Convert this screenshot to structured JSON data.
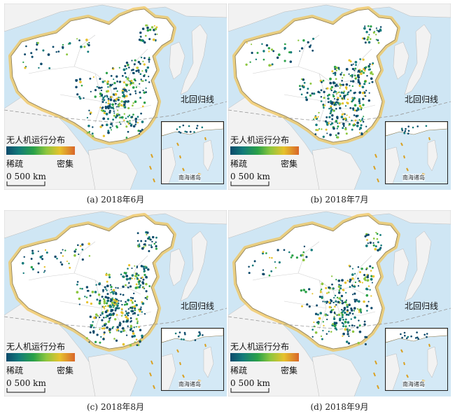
{
  "legend": {
    "title": "无人机运行分布",
    "low": "稀疏",
    "high": "密集"
  },
  "scale": "0  500 km",
  "tropic_label": "北回归线",
  "inset_label": "南海诸岛",
  "panels": [
    {
      "caption": "(a) 2018年6月"
    },
    {
      "caption": "(b) 2018年7月"
    },
    {
      "caption": "(c) 2018年8月"
    },
    {
      "caption": "(d) 2018年9月"
    }
  ],
  "colors": {
    "sea": "#cfe6f4",
    "land": "#ffffff",
    "neighbor": "#f2f2f2",
    "border_glow": "#f0c45a",
    "sparse": "#0d4a6b",
    "dense": "#d9662a"
  }
}
